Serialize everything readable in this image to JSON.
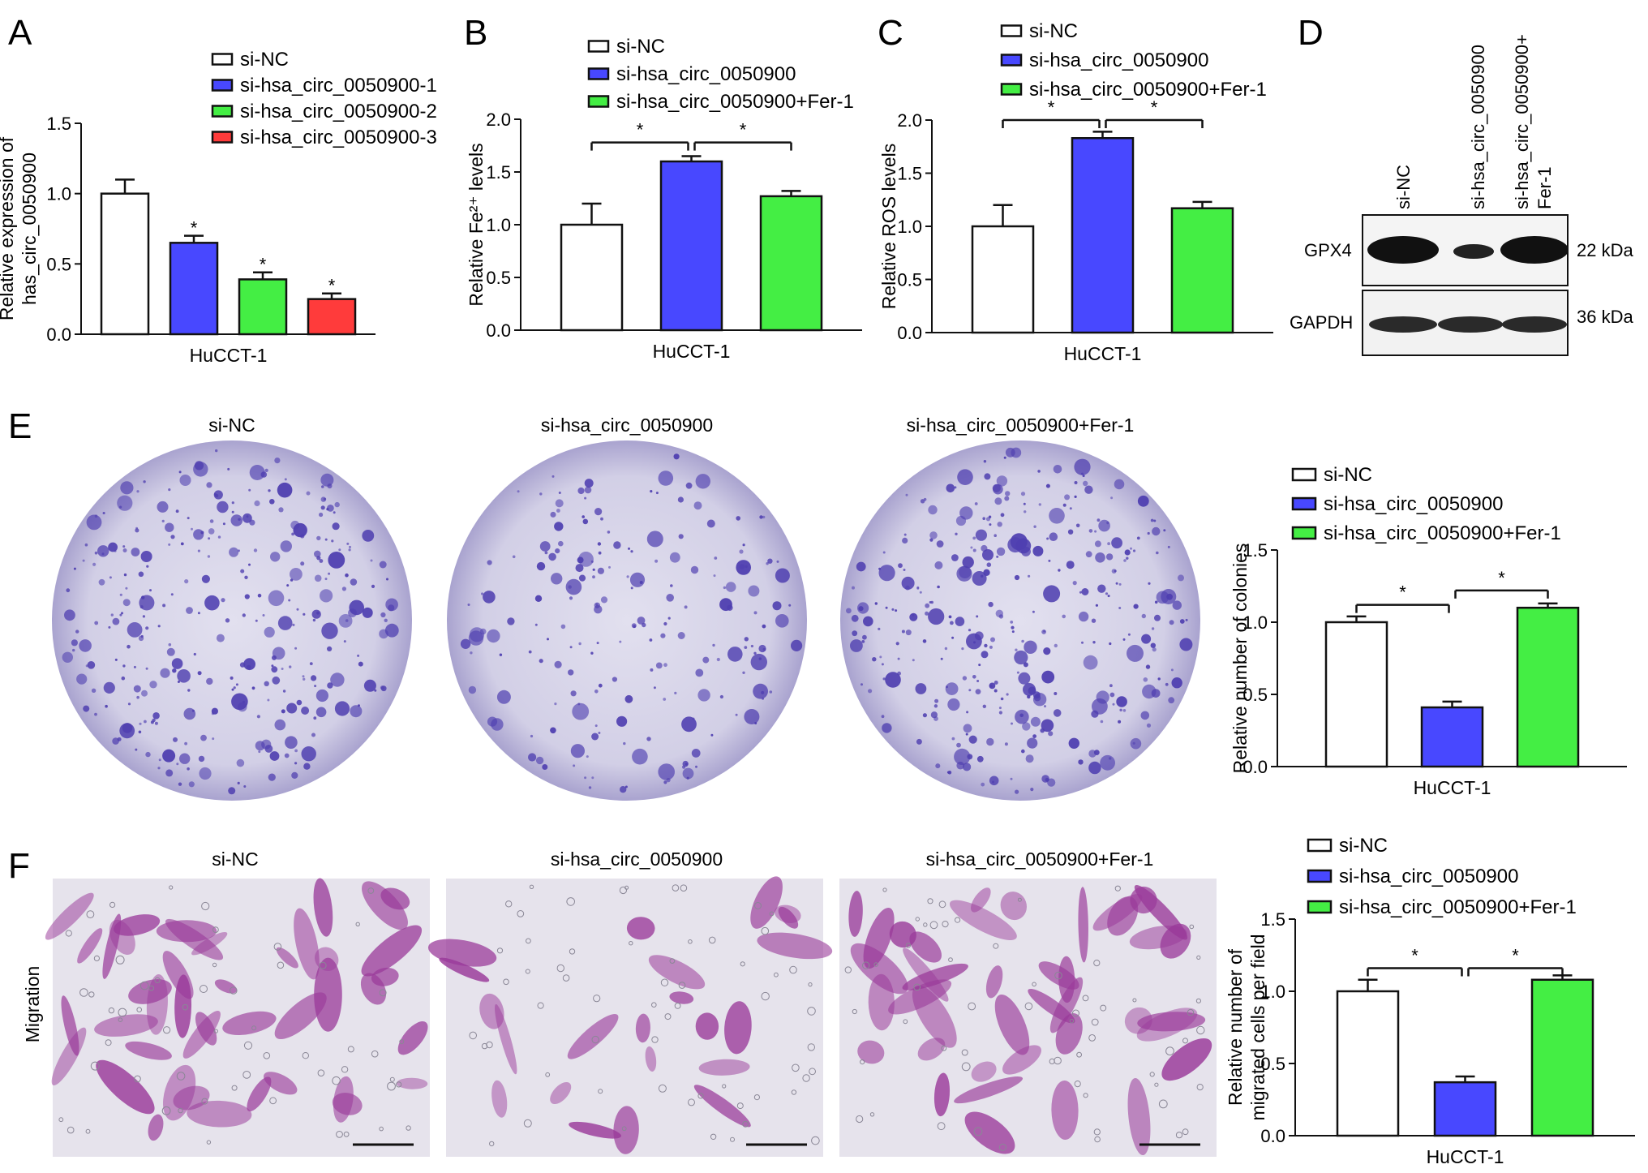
{
  "panels": {
    "A": "A",
    "B": "B",
    "C": "C",
    "D": "D",
    "E": "E",
    "F": "F"
  },
  "chart_data": [
    {
      "id": "A",
      "type": "bar",
      "panel": "A",
      "categories": [
        "si-NC",
        "si-hsa_circ_0050900-1",
        "si-hsa_circ_0050900-2",
        "si-hsa_circ_0050900-3"
      ],
      "values": [
        1.0,
        0.65,
        0.39,
        0.25
      ],
      "errors": [
        0.1,
        0.05,
        0.05,
        0.04
      ],
      "sig": [
        "",
        "*",
        "*",
        "*"
      ],
      "colors": [
        "#ffffff",
        "#4848ff",
        "#44ee44",
        "#ff3b3b"
      ],
      "ylabel_lines": [
        "Relative expression of",
        "has_circ_0050900"
      ],
      "xlabel": "HuCCT-1",
      "ylim": [
        0,
        1.5
      ],
      "yticks": [
        "0.0",
        "0.5",
        "1.0",
        "1.5"
      ],
      "legend": [
        "si-NC",
        "si-hsa_circ_0050900-1",
        "si-hsa_circ_0050900-2",
        "si-hsa_circ_0050900-3"
      ],
      "brackets": []
    },
    {
      "id": "B",
      "type": "bar",
      "panel": "B",
      "categories": [
        "si-NC",
        "si-hsa_circ_0050900",
        "si-hsa_circ_0050900+Fer-1"
      ],
      "values": [
        1.0,
        1.6,
        1.27
      ],
      "errors": [
        0.2,
        0.05,
        0.05
      ],
      "sig": [
        "",
        "",
        ""
      ],
      "colors": [
        "#ffffff",
        "#4848ff",
        "#44ee44"
      ],
      "ylabel_lines": [
        "Relative Fe²⁺ levels"
      ],
      "xlabel": "HuCCT-1",
      "ylim": [
        0,
        2.0
      ],
      "yticks": [
        "0.0",
        "0.5",
        "1.0",
        "1.5",
        "2.0"
      ],
      "legend": [
        "si-NC",
        "si-hsa_circ_0050900",
        "si-hsa_circ_0050900+Fer-1"
      ],
      "brackets": [
        {
          "from": 0,
          "to": 1,
          "y": 1.78,
          "label": "*"
        },
        {
          "from": 1,
          "to": 2,
          "y": 1.78,
          "label": "*"
        }
      ]
    },
    {
      "id": "C",
      "type": "bar",
      "panel": "C",
      "categories": [
        "si-NC",
        "si-hsa_circ_0050900",
        "si-hsa_circ_0050900+Fer-1"
      ],
      "values": [
        1.0,
        1.83,
        1.17
      ],
      "errors": [
        0.2,
        0.06,
        0.06
      ],
      "sig": [
        "",
        "",
        ""
      ],
      "colors": [
        "#ffffff",
        "#4848ff",
        "#44ee44"
      ],
      "ylabel_lines": [
        "Relative ROS levels"
      ],
      "xlabel": "HuCCT-1",
      "ylim": [
        0,
        2.0
      ],
      "yticks": [
        "0.0",
        "0.5",
        "1.0",
        "1.5",
        "2.0"
      ],
      "legend": [
        "si-NC",
        "si-hsa_circ_0050900",
        "si-hsa_circ_0050900+Fer-1"
      ],
      "brackets": [
        {
          "from": 0,
          "to": 1,
          "y": 2.0,
          "label": "*"
        },
        {
          "from": 1,
          "to": 2,
          "y": 2.0,
          "label": "*"
        }
      ]
    },
    {
      "id": "E",
      "type": "bar",
      "panel": "E",
      "categories": [
        "si-NC",
        "si-hsa_circ_0050900",
        "si-hsa_circ_0050900+Fer-1"
      ],
      "values": [
        1.0,
        0.41,
        1.1
      ],
      "errors": [
        0.04,
        0.04,
        0.03
      ],
      "sig": [
        "",
        "",
        ""
      ],
      "colors": [
        "#ffffff",
        "#4848ff",
        "#44ee44"
      ],
      "ylabel_lines": [
        "Relative number of colonies"
      ],
      "xlabel": "HuCCT-1",
      "ylim": [
        0,
        1.5
      ],
      "yticks": [
        "0.0",
        "0.5",
        "1.0",
        "1.5"
      ],
      "legend": [
        "si-NC",
        "si-hsa_circ_0050900",
        "si-hsa_circ_0050900+Fer-1"
      ],
      "brackets": [
        {
          "from": 0,
          "to": 1,
          "y": 1.12,
          "label": "*"
        },
        {
          "from": 1,
          "to": 2,
          "y": 1.22,
          "label": "*"
        }
      ]
    },
    {
      "id": "F",
      "type": "bar",
      "panel": "F",
      "categories": [
        "si-NC",
        "si-hsa_circ_0050900",
        "si-hsa_circ_0050900+Fer-1"
      ],
      "values": [
        1.0,
        0.37,
        1.08
      ],
      "errors": [
        0.08,
        0.04,
        0.03
      ],
      "sig": [
        "",
        "",
        ""
      ],
      "colors": [
        "#ffffff",
        "#4848ff",
        "#44ee44"
      ],
      "ylabel_lines": [
        "Relative number of",
        "migrated cells per field"
      ],
      "xlabel": "HuCCT-1",
      "ylim": [
        0,
        1.5
      ],
      "yticks": [
        "0.0",
        "0.5",
        "1.0",
        "1.5"
      ],
      "legend": [
        "si-NC",
        "si-hsa_circ_0050900",
        "si-hsa_circ_0050900+Fer-1"
      ],
      "brackets": [
        {
          "from": 0,
          "to": 1,
          "y": 1.16,
          "label": "*"
        },
        {
          "from": 1,
          "to": 2,
          "y": 1.16,
          "label": "*"
        }
      ]
    }
  ],
  "western_blot": {
    "lanes": [
      "si-NC",
      "si-hsa_circ_0050900",
      "si-hsa_circ_0050900+",
      "Fer-1"
    ],
    "bands": [
      {
        "protein": "GPX4",
        "size": "22 kDa"
      },
      {
        "protein": "GAPDH",
        "size": "36 kDa"
      }
    ]
  },
  "colony_titles": [
    "si-NC",
    "si-hsa_circ_0050900",
    "si-hsa_circ_0050900+Fer-1"
  ],
  "migration_titles": [
    "si-NC",
    "si-hsa_circ_0050900",
    "si-hsa_circ_0050900+Fer-1"
  ],
  "migration_row_label": "Migration",
  "colors": {
    "stain_purple": "#4f3fb0",
    "stain_magenta": "#9a3a9a",
    "plate_bg": "#d9d6ea",
    "field_bg": "#e6e3ec"
  }
}
